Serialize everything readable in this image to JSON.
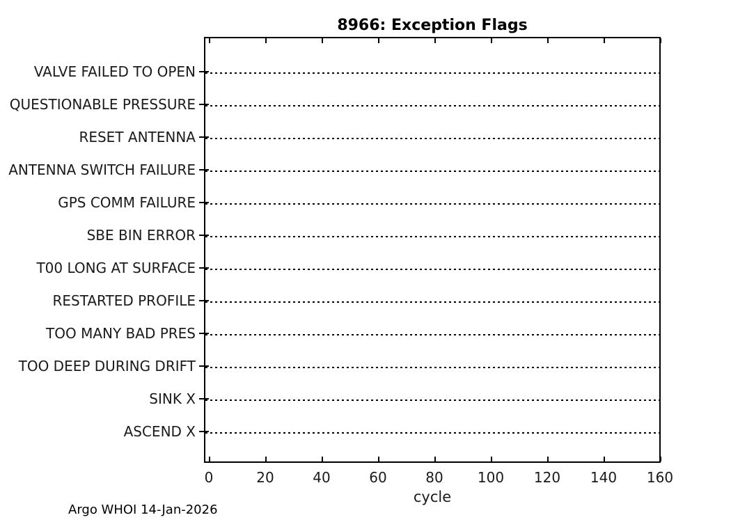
{
  "title": "8966: Exception Flags",
  "annotation": "Argo WHOI 14-Jan-2026",
  "chart_data": {
    "type": "scatter",
    "title": "8966: Exception Flags",
    "xlabel": "cycle",
    "ylabel": "",
    "categories": [
      "VALVE FAILED TO OPEN",
      "QUESTIONABLE PRESSURE",
      "RESET ANTENNA",
      "ANTENNA SWITCH FAILURE",
      "GPS COMM FAILURE",
      "SBE BIN ERROR",
      "T00 LONG AT SURFACE",
      "RESTARTED PROFILE",
      "TOO MANY BAD PRES",
      "TOO DEEP DURING DRIFT",
      "SINK X",
      "ASCEND X"
    ],
    "x_ticks": [
      0,
      20,
      40,
      60,
      80,
      100,
      120,
      140,
      160
    ],
    "xlim": [
      0,
      160
    ],
    "series": [],
    "grid": "horizontal-dotted-guide-lines",
    "legend": "none",
    "colors": {
      "foreground": "#000000",
      "background": "#ffffff"
    }
  }
}
